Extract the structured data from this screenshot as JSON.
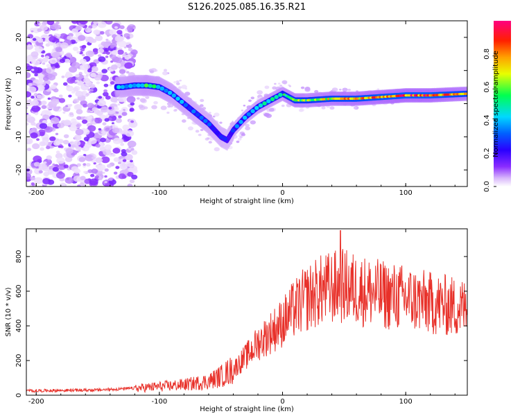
{
  "title": "S126.2025.085.16.35.R21",
  "chart_data": [
    {
      "type": "heatmap",
      "xlabel": "Height of straight line (km)",
      "ylabel": "Frequency (Hz)",
      "xlim": [
        -208,
        150
      ],
      "ylim": [
        -25,
        25
      ],
      "x_ticks": [
        -200,
        -100,
        0,
        100
      ],
      "y_ticks": [
        -20,
        -10,
        0,
        10,
        20
      ],
      "colorbar": {
        "label": "Normalized spectral amplitude",
        "range": [
          0,
          1
        ],
        "ticks": [
          "0.0",
          "0.2",
          "0.4",
          "0.6",
          "0.8"
        ],
        "colors": [
          "#ffffff",
          "#b77cf2",
          "#6a00ff",
          "#0000ff",
          "#00c8ff",
          "#00ff60",
          "#ffff00",
          "#ff8000",
          "#ff0000",
          "#ff0080"
        ]
      },
      "ridge": {
        "x": [
          -130,
          -120,
          -110,
          -100,
          -90,
          -80,
          -70,
          -60,
          -50,
          -45,
          -40,
          -30,
          -20,
          -10,
          0,
          10,
          20,
          40,
          60,
          80,
          100,
          120,
          150
        ],
        "y": [
          5,
          5.5,
          5.5,
          5,
          3,
          0,
          -3,
          -6,
          -10,
          -11,
          -8,
          -4,
          -1,
          1,
          3,
          1,
          1,
          1.5,
          1.5,
          2,
          2.5,
          2.5,
          3
        ],
        "amplitude": [
          0.4,
          0.45,
          0.5,
          0.45,
          0.4,
          0.35,
          0.3,
          0.3,
          0.25,
          0.2,
          0.3,
          0.35,
          0.4,
          0.45,
          0.5,
          0.65,
          0.6,
          0.7,
          0.75,
          0.8,
          0.85,
          0.85,
          0.7
        ]
      }
    },
    {
      "type": "line",
      "xlabel": "Height of straight line (km)",
      "ylabel": "SNR (10 * v/v)",
      "xlim": [
        -208,
        150
      ],
      "ylim": [
        0,
        960
      ],
      "x_ticks": [
        -200,
        -100,
        0,
        100
      ],
      "y_ticks": [
        0,
        200,
        400,
        600,
        800
      ],
      "color": "#e8312a",
      "envelope": {
        "x": [
          -208,
          -150,
          -120,
          -100,
          -80,
          -60,
          -50,
          -40,
          -30,
          -20,
          -10,
          0,
          10,
          20,
          30,
          40,
          50,
          60,
          80,
          100,
          120,
          150
        ],
        "y": [
          25,
          30,
          40,
          50,
          60,
          80,
          110,
          150,
          220,
          300,
          360,
          420,
          500,
          560,
          600,
          620,
          630,
          610,
          580,
          560,
          530,
          500
        ]
      },
      "peak": {
        "x": 47,
        "y": 950
      }
    }
  ]
}
